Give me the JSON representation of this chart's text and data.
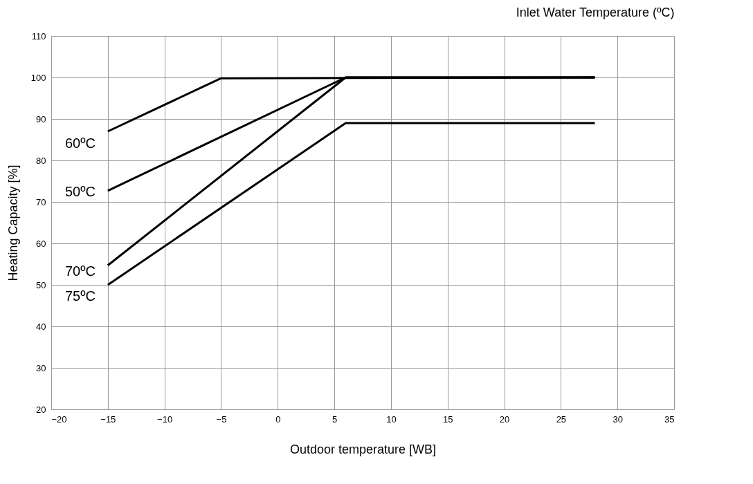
{
  "chart_data": {
    "type": "line",
    "legend_title": "Inlet Water Temperature (ºC)",
    "xlabel": "Outdoor temperature [WB]",
    "ylabel": "Heating Capacity [%]",
    "xlim": [
      -20,
      35
    ],
    "xticks": [
      -20,
      -15,
      -10,
      -5,
      0,
      5,
      10,
      15,
      20,
      25,
      30,
      35
    ],
    "ylim": [
      20,
      110
    ],
    "yticks": [
      20,
      30,
      40,
      50,
      60,
      70,
      80,
      90,
      100,
      110
    ],
    "grid": true,
    "marker": "none",
    "line_style": "solid",
    "series": [
      {
        "name": "60ºC",
        "color": "#000000",
        "x": [
          -15,
          -5,
          28
        ],
        "values": [
          87,
          99.8,
          100
        ]
      },
      {
        "name": "50ºC",
        "color": "#000000",
        "x": [
          -15,
          6,
          28
        ],
        "values": [
          72.7,
          100,
          100
        ]
      },
      {
        "name": "70ºC",
        "color": "#000000",
        "x": [
          -15,
          6,
          28
        ],
        "values": [
          54.7,
          100,
          100
        ]
      },
      {
        "name": "75ºC",
        "color": "#000000",
        "x": [
          -15,
          6,
          28
        ],
        "values": [
          50,
          89,
          89
        ]
      }
    ]
  }
}
